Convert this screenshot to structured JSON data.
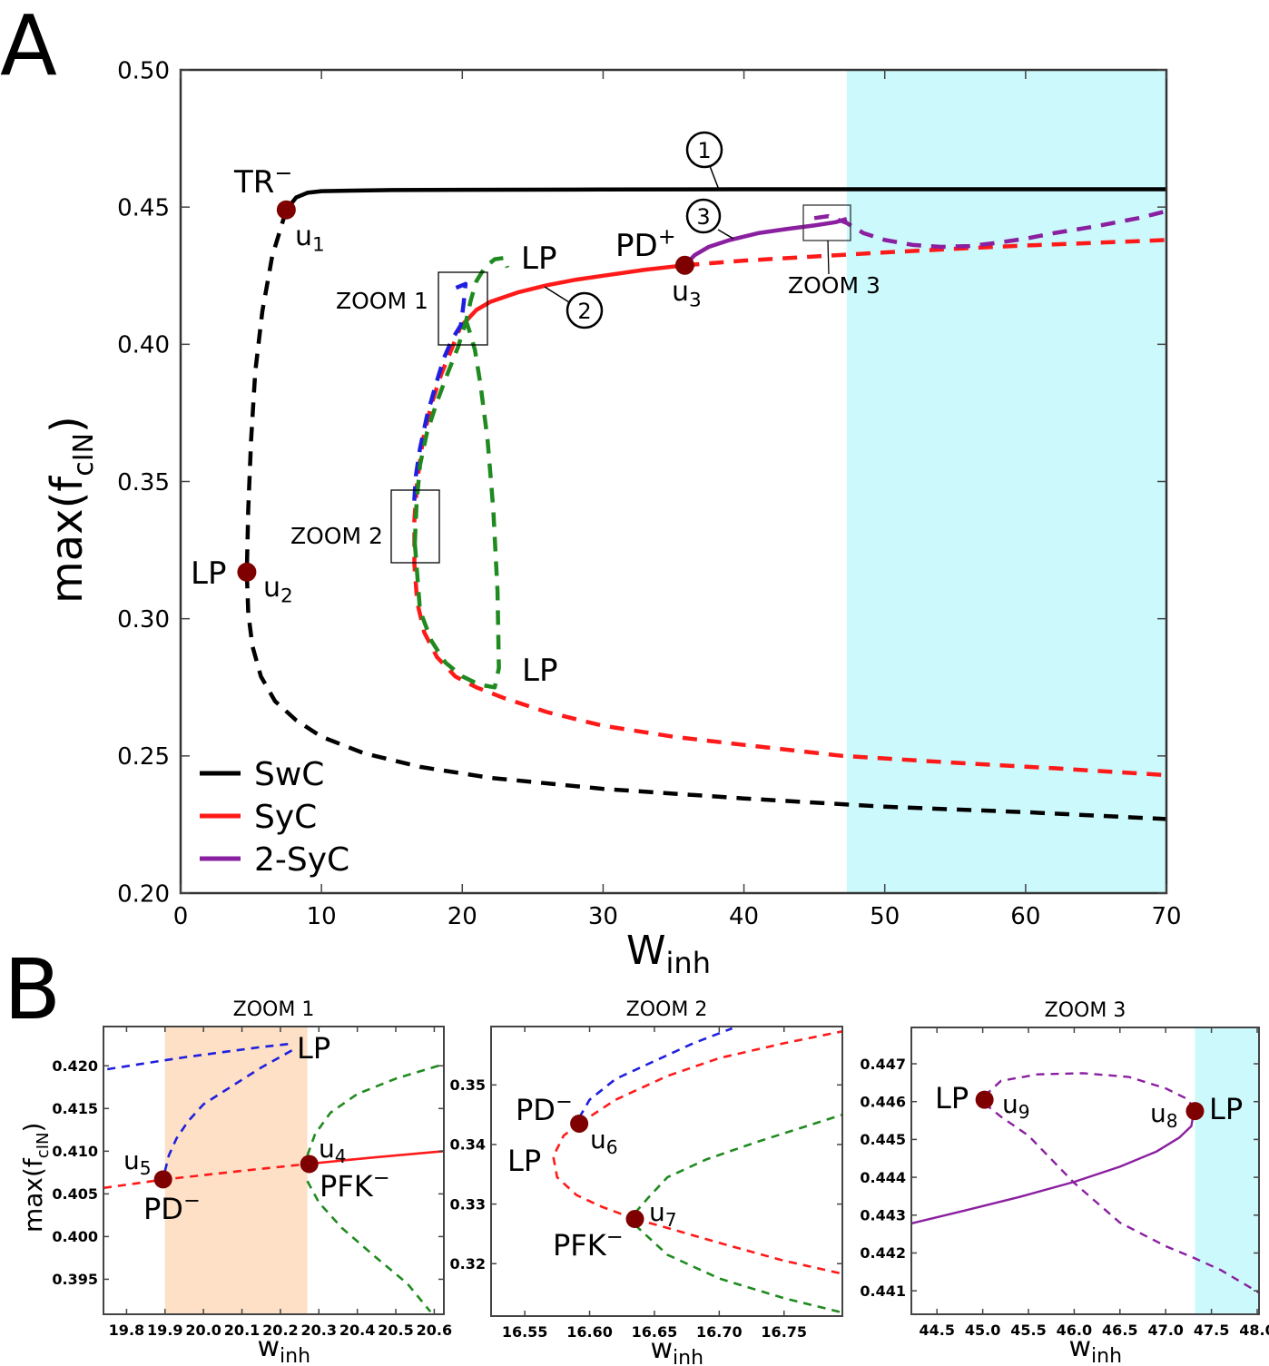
{
  "panel_labels": {
    "a": "A",
    "b": "B"
  },
  "colors": {
    "swc": "#000000",
    "syc": "#ff1a1a",
    "two_syc": "#8a1fa0",
    "blue": "#1f1fe0",
    "green": "#1f8a1f",
    "point": "#7f0000",
    "cyan_region": "#ccf9fc",
    "orange_region": "#fde0c5"
  },
  "chart_data": [
    {
      "id": "A",
      "type": "line",
      "xlabel": "W",
      "xlabel_sub": "inh",
      "ylabel": "max(f",
      "ylabel_sub": "cIN",
      "ylabel_close": ")",
      "xlim": [
        0,
        70
      ],
      "ylim": [
        0.2,
        0.5
      ],
      "xticks": [
        0,
        10,
        20,
        30,
        40,
        50,
        60,
        70
      ],
      "xtick_labels": [
        "0",
        "10",
        "20",
        "30",
        "40",
        "50",
        "60",
        "70"
      ],
      "yticks": [
        0.2,
        0.25,
        0.3,
        0.35,
        0.4,
        0.45,
        0.5
      ],
      "ytick_labels": [
        "0.20",
        "0.25",
        "0.30",
        "0.35",
        "0.40",
        "0.45",
        "0.50"
      ],
      "shaded_region": {
        "x0": 47.3,
        "x1": 70,
        "color_key": "cyan_region"
      },
      "legend": {
        "position": "bottom-left",
        "entries": [
          {
            "label": "SwC",
            "color_key": "swc"
          },
          {
            "label": "SyC",
            "color_key": "syc"
          },
          {
            "label": "2-SyC",
            "color_key": "two_syc"
          }
        ]
      },
      "series": [
        {
          "name": "SwC stable",
          "color_key": "swc",
          "style": "solid",
          "x": [
            7.5,
            8.2,
            9.0,
            10,
            15,
            20,
            30,
            40,
            50,
            60,
            70
          ],
          "y": [
            0.449,
            0.4535,
            0.4552,
            0.4558,
            0.4562,
            0.4563,
            0.4564,
            0.4565,
            0.4565,
            0.4565,
            0.4565
          ]
        },
        {
          "name": "SwC unstable",
          "color_key": "swc",
          "style": "dashed",
          "x": [
            7.5,
            6.5,
            5.8,
            5.3,
            5.0,
            4.8,
            4.7,
            4.8,
            5.1,
            5.7,
            6.7,
            8.2,
            10,
            13,
            17,
            22,
            30,
            40,
            50,
            60,
            70
          ],
          "y": [
            0.449,
            0.432,
            0.412,
            0.39,
            0.365,
            0.34,
            0.317,
            0.302,
            0.29,
            0.279,
            0.27,
            0.263,
            0.257,
            0.251,
            0.246,
            0.242,
            0.238,
            0.2345,
            0.2315,
            0.2295,
            0.227
          ]
        },
        {
          "name": "SyC stable",
          "color_key": "syc",
          "style": "solid",
          "x": [
            20.27,
            21,
            22,
            24,
            26,
            28,
            30,
            33,
            35.8
          ],
          "y": [
            0.4085,
            0.4125,
            0.4155,
            0.419,
            0.4215,
            0.4235,
            0.425,
            0.4272,
            0.4288
          ]
        },
        {
          "name": "SyC unstable upper",
          "color_key": "syc",
          "style": "dashed",
          "x": [
            35.8,
            40,
            45,
            50,
            55,
            60,
            65,
            70
          ],
          "y": [
            0.4288,
            0.4305,
            0.432,
            0.4335,
            0.4348,
            0.436,
            0.437,
            0.438
          ]
        },
        {
          "name": "SyC unstable lower",
          "color_key": "syc",
          "style": "dashed",
          "x": [
            20.27,
            19.9,
            19.3,
            18.5,
            17.8,
            17.2,
            16.8,
            16.6,
            16.6,
            16.8,
            17.3,
            18.2,
            19.5,
            21,
            23,
            26,
            30,
            35,
            40,
            47,
            55,
            62,
            70
          ],
          "y": [
            0.4085,
            0.4067,
            0.399,
            0.389,
            0.378,
            0.365,
            0.35,
            0.336,
            0.32,
            0.306,
            0.295,
            0.286,
            0.279,
            0.275,
            0.271,
            0.266,
            0.261,
            0.257,
            0.254,
            0.25,
            0.2475,
            0.2455,
            0.243
          ]
        },
        {
          "name": "blue unstable",
          "color_key": "blue",
          "style": "dashed",
          "x": [
            16.59,
            16.7,
            17.0,
            17.5,
            18.1,
            18.7,
            19.3,
            19.9,
            20.1,
            20.23,
            20.0,
            19.5
          ],
          "y": [
            0.343,
            0.352,
            0.362,
            0.374,
            0.385,
            0.395,
            0.402,
            0.407,
            0.415,
            0.422,
            0.4215,
            0.4205
          ]
        },
        {
          "name": "green unstable left",
          "color_key": "green",
          "style": "dashed",
          "x": [
            16.63,
            16.75,
            17.0,
            17.5,
            18.2,
            19.0,
            19.7,
            20.27,
            20.6,
            21.0,
            21.6,
            22.3,
            23.0,
            23.2
          ],
          "y": [
            0.3275,
            0.342,
            0.356,
            0.368,
            0.379,
            0.39,
            0.399,
            0.4085,
            0.416,
            0.423,
            0.428,
            0.431,
            0.4315,
            0.428
          ]
        },
        {
          "name": "green unstable right",
          "color_key": "green",
          "style": "dashed",
          "x": [
            16.63,
            17.0,
            17.8,
            18.8,
            20.0,
            21.2,
            22.3,
            22.6,
            22.5,
            22.2,
            21.8,
            21.3,
            20.9,
            20.5,
            20.27
          ],
          "y": [
            0.3275,
            0.303,
            0.292,
            0.284,
            0.279,
            0.276,
            0.275,
            0.282,
            0.31,
            0.34,
            0.365,
            0.385,
            0.398,
            0.405,
            0.4085
          ]
        },
        {
          "name": "2-SyC stable",
          "color_key": "two_syc",
          "style": "solid",
          "x": [
            35.8,
            36.5,
            37.5,
            39,
            41,
            43,
            45,
            46.5,
            47.3
          ],
          "y": [
            0.4288,
            0.4325,
            0.4355,
            0.438,
            0.4405,
            0.442,
            0.4433,
            0.4445,
            0.4457
          ]
        },
        {
          "name": "2-SyC unstable",
          "color_key": "two_syc",
          "style": "dashed",
          "x": [
            45.0,
            46,
            47.3,
            48.5,
            50,
            52,
            54,
            56,
            58,
            60,
            62,
            65,
            68,
            70
          ],
          "y": [
            0.446,
            0.4467,
            0.4442,
            0.4405,
            0.438,
            0.4362,
            0.4355,
            0.4358,
            0.437,
            0.4385,
            0.4405,
            0.443,
            0.446,
            0.4485
          ]
        }
      ],
      "points": [
        {
          "id": "u1",
          "label": "u",
          "sub": "1",
          "x": 7.5,
          "y": 0.449,
          "bifurcation": "TR",
          "sup": "−"
        },
        {
          "id": "u2",
          "label": "u",
          "sub": "2",
          "x": 4.7,
          "y": 0.317,
          "bifurcation": "LP",
          "sup": ""
        },
        {
          "id": "u3",
          "label": "u",
          "sub": "3",
          "x": 35.8,
          "y": 0.4288,
          "bifurcation": "PD",
          "sup": "+"
        }
      ],
      "annotations": {
        "lp_upper": "LP",
        "lp_lower": "LP",
        "zoom1": "ZOOM 1",
        "zoom2": "ZOOM 2",
        "zoom3": "ZOOM 3",
        "circle1": "1",
        "circle2": "2",
        "circle3": "3"
      },
      "zoom_boxes": [
        {
          "label_key": "zoom1",
          "x0": 18.4,
          "x1": 21.7,
          "y0": 0.3995,
          "y1": 0.427
        },
        {
          "label_key": "zoom2",
          "x0": 15.0,
          "x1": 18.4,
          "y0": 0.3215,
          "y1": 0.3475
        },
        {
          "label_key": "zoom3",
          "x0": 44.2,
          "x1": 47.8,
          "y0": 0.4385,
          "y1": 0.4515
        }
      ]
    },
    {
      "id": "B1",
      "type": "line",
      "title": "ZOOM 1",
      "xlabel": "w",
      "xlabel_sub": "inh",
      "ylabel": "max(f",
      "ylabel_sub": "cIN",
      "ylabel_close": ")",
      "xlim": [
        19.74,
        20.625
      ],
      "ylim": [
        0.3909,
        0.4246
      ],
      "xticks": [
        19.8,
        19.9,
        20.0,
        20.1,
        20.2,
        20.3,
        20.4,
        20.5,
        20.6
      ],
      "xtick_labels": [
        "19.8",
        "19.9",
        "20.0",
        "20.1",
        "20.2",
        "20.3",
        "20.4",
        "20.5",
        "20.6"
      ],
      "yticks": [
        0.395,
        0.4,
        0.405,
        0.41,
        0.415,
        0.42
      ],
      "ytick_labels": [
        "0.395",
        "0.400",
        "0.405",
        "0.410",
        "0.415",
        "0.420"
      ],
      "shaded_region": {
        "x0": 19.9,
        "x1": 20.27,
        "color_key": "orange_region"
      },
      "series": [
        {
          "name": "blue upper",
          "color_key": "blue",
          "style": "dashed",
          "x": [
            19.75,
            19.85,
            19.95,
            20.05,
            20.15,
            20.23
          ],
          "y": [
            0.4196,
            0.4203,
            0.421,
            0.4216,
            0.4222,
            0.4226
          ]
        },
        {
          "name": "blue lower",
          "color_key": "blue",
          "style": "dashed",
          "x": [
            20.23,
            20.15,
            20.08,
            20.0,
            19.96,
            19.93,
            19.91,
            19.9
          ],
          "y": [
            0.4218,
            0.4198,
            0.4178,
            0.4155,
            0.4135,
            0.4115,
            0.4095,
            0.4077
          ]
        },
        {
          "name": "red dashed",
          "color_key": "syc",
          "style": "dashed",
          "x": [
            19.74,
            19.9,
            20.1,
            20.27
          ],
          "y": [
            0.4057,
            0.4067,
            0.4077,
            0.4085
          ]
        },
        {
          "name": "red solid",
          "color_key": "syc",
          "style": "solid",
          "x": [
            20.27,
            20.45,
            20.625
          ],
          "y": [
            0.4085,
            0.4093,
            0.41
          ]
        },
        {
          "name": "green upper",
          "color_key": "green",
          "style": "dashed",
          "x": [
            20.27,
            20.29,
            20.33,
            20.4,
            20.5,
            20.625
          ],
          "y": [
            0.4095,
            0.412,
            0.4145,
            0.4167,
            0.4185,
            0.4202
          ]
        },
        {
          "name": "green lower",
          "color_key": "green",
          "style": "dashed",
          "x": [
            20.27,
            20.3,
            20.36,
            20.45,
            20.53,
            20.59
          ],
          "y": [
            0.4065,
            0.404,
            0.401,
            0.3975,
            0.3945,
            0.3912
          ]
        }
      ],
      "points": [
        {
          "id": "u4",
          "label": "u",
          "sub": "4",
          "x": 20.275,
          "y": 0.4085,
          "bifurcation": "PFK",
          "sup": "−"
        },
        {
          "id": "u5",
          "label": "u",
          "sub": "5",
          "x": 19.895,
          "y": 0.4067,
          "bifurcation": "PD",
          "sup": "−"
        }
      ],
      "annotations": {
        "lp": "LP"
      }
    },
    {
      "id": "B2",
      "type": "line",
      "title": "ZOOM 2",
      "xlabel": "w",
      "xlabel_sub": "inh",
      "xlim": [
        16.524,
        16.795
      ],
      "ylim": [
        0.3112,
        0.3598
      ],
      "xticks": [
        16.55,
        16.6,
        16.65,
        16.7,
        16.75
      ],
      "xtick_labels": [
        "16.55",
        "16.60",
        "16.65",
        "16.70",
        "16.75"
      ],
      "yticks": [
        0.32,
        0.33,
        0.34,
        0.35
      ],
      "ytick_labels": [
        "0.32",
        "0.33",
        "0.34",
        "0.35"
      ],
      "series": [
        {
          "name": "blue",
          "color_key": "blue",
          "style": "dashed",
          "x": [
            16.592,
            16.6,
            16.62,
            16.65,
            16.68,
            16.71
          ],
          "y": [
            0.3445,
            0.3475,
            0.351,
            0.354,
            0.357,
            0.3595
          ]
        },
        {
          "name": "red upper",
          "color_key": "syc",
          "style": "dashed",
          "x": [
            16.592,
            16.62,
            16.66,
            16.7,
            16.75,
            16.795
          ],
          "y": [
            0.3435,
            0.3475,
            0.3515,
            0.3545,
            0.357,
            0.359
          ]
        },
        {
          "name": "red loop",
          "color_key": "syc",
          "style": "dashed",
          "x": [
            16.592,
            16.58,
            16.572,
            16.575,
            16.59,
            16.61,
            16.635
          ],
          "y": [
            0.3435,
            0.3415,
            0.338,
            0.3345,
            0.3315,
            0.3295,
            0.3275
          ]
        },
        {
          "name": "red lower",
          "color_key": "syc",
          "style": "dashed",
          "x": [
            16.635,
            16.66,
            16.7,
            16.75,
            16.795
          ],
          "y": [
            0.3275,
            0.326,
            0.3235,
            0.3205,
            0.3183
          ]
        },
        {
          "name": "green upper",
          "color_key": "green",
          "style": "dashed",
          "x": [
            16.635,
            16.645,
            16.66,
            16.69,
            16.73,
            16.795
          ],
          "y": [
            0.3285,
            0.331,
            0.3345,
            0.3375,
            0.3405,
            0.345
          ]
        },
        {
          "name": "green lower",
          "color_key": "green",
          "style": "dashed",
          "x": [
            16.635,
            16.645,
            16.66,
            16.7,
            16.75,
            16.795
          ],
          "y": [
            0.3265,
            0.3245,
            0.3215,
            0.3175,
            0.3142,
            0.3118
          ]
        }
      ],
      "points": [
        {
          "id": "u6",
          "label": "u",
          "sub": "6",
          "x": 16.592,
          "y": 0.3435,
          "bifurcation": "PD",
          "sup": "−"
        },
        {
          "id": "u7",
          "label": "u",
          "sub": "7",
          "x": 16.635,
          "y": 0.3275,
          "bifurcation": "PFK",
          "sup": "−"
        }
      ],
      "annotations": {
        "lp": "LP"
      }
    },
    {
      "id": "B3",
      "type": "line",
      "title": "ZOOM 3",
      "xlabel": "w",
      "xlabel_sub": "inh",
      "xlim": [
        44.22,
        48.02
      ],
      "ylim": [
        0.44038,
        0.44796
      ],
      "xticks": [
        44.5,
        45.0,
        45.5,
        46.0,
        46.5,
        47.0,
        47.5,
        48.0
      ],
      "xtick_labels": [
        "44.5",
        "45.0",
        "45.5",
        "46.0",
        "46.5",
        "47.0",
        "47.5",
        "48.0"
      ],
      "yticks": [
        0.441,
        0.442,
        0.443,
        0.444,
        0.445,
        0.446,
        0.447
      ],
      "ytick_labels": [
        "0.441",
        "0.442",
        "0.443",
        "0.444",
        "0.445",
        "0.446",
        "0.447"
      ],
      "shaded_region": {
        "x0": 47.32,
        "x1": 48.02,
        "color_key": "cyan_region"
      },
      "series": [
        {
          "name": "2-SyC solid",
          "color_key": "two_syc",
          "style": "solid",
          "x": [
            44.22,
            44.8,
            45.4,
            46.0,
            46.5,
            46.9,
            47.15,
            47.28,
            47.31
          ],
          "y": [
            0.44278,
            0.44312,
            0.44348,
            0.44388,
            0.44428,
            0.44468,
            0.44505,
            0.44535,
            0.44575
          ]
        },
        {
          "name": "2-SyC dashed top",
          "color_key": "two_syc",
          "style": "dashed",
          "x": [
            45.02,
            45.2,
            45.6,
            46.1,
            46.6,
            47.0,
            47.25,
            47.31
          ],
          "y": [
            0.44615,
            0.44655,
            0.44672,
            0.44675,
            0.44665,
            0.44635,
            0.44605,
            0.44575
          ]
        },
        {
          "name": "2-SyC dashed cross",
          "color_key": "two_syc",
          "style": "dashed",
          "x": [
            45.02,
            45.2,
            45.5,
            46.0,
            46.5,
            47.0,
            47.3,
            47.6,
            48.02
          ],
          "y": [
            0.44595,
            0.4456,
            0.4451,
            0.44385,
            0.4428,
            0.44218,
            0.44188,
            0.44155,
            0.44095
          ]
        }
      ],
      "points": [
        {
          "id": "u8",
          "label": "u",
          "sub": "8",
          "x": 47.32,
          "y": 0.44575,
          "bifurcation": "LP",
          "sup": ""
        },
        {
          "id": "u9",
          "label": "u",
          "sub": "9",
          "x": 45.02,
          "y": 0.44605,
          "bifurcation": "LP",
          "sup": ""
        }
      ]
    }
  ]
}
